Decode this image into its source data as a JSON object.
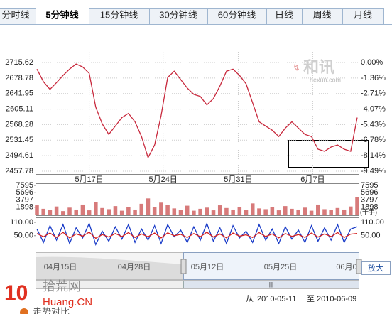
{
  "tabs": [
    "分时线",
    "5分钟线",
    "15分钟线",
    "30分钟线",
    "60分钟线",
    "日线",
    "周线",
    "月线"
  ],
  "active_tab": 1,
  "watermark": {
    "brand": "和讯",
    "site": "hexun.com"
  },
  "chart_data": [
    {
      "type": "line",
      "xlim": [
        0,
        49
      ],
      "xticks": [
        {
          "value": 8,
          "label": "5月17日"
        },
        {
          "value": 19.3,
          "label": "5月24日"
        },
        {
          "value": 30.8,
          "label": "5月31日"
        },
        {
          "value": 42.2,
          "label": "6月7日"
        }
      ],
      "ylim": [
        2457.78,
        2715.62
      ],
      "yticks": [
        2715.62,
        2678.78,
        2641.95,
        2605.11,
        2568.28,
        2531.45,
        2494.61,
        2457.78
      ],
      "y2lim": [
        -9.49,
        0
      ],
      "y2ticks": [
        {
          "value": 0,
          "label": "0.00%"
        },
        {
          "value": -1.36,
          "label": "-1.36%"
        },
        {
          "value": -2.71,
          "label": "-2.71%"
        },
        {
          "value": -4.07,
          "label": "-4.07%"
        },
        {
          "value": -5.43,
          "label": "-5.43%"
        },
        {
          "value": -6.78,
          "label": "-6.78%"
        },
        {
          "value": -8.14,
          "label": "-8.14%"
        },
        {
          "value": -9.49,
          "label": "-9.49%"
        }
      ],
      "grid": true,
      "series": [
        {
          "color": "#c8283c",
          "values": [
            2700,
            2670,
            2652,
            2668,
            2685,
            2700,
            2712,
            2705,
            2690,
            2610,
            2570,
            2545,
            2565,
            2585,
            2595,
            2575,
            2540,
            2490,
            2520,
            2590,
            2680,
            2695,
            2675,
            2655,
            2640,
            2635,
            2615,
            2630,
            2660,
            2695,
            2700,
            2685,
            2665,
            2620,
            2575,
            2565,
            2555,
            2540,
            2560,
            2575,
            2560,
            2545,
            2540,
            2510,
            2505,
            2515,
            2520,
            2510,
            2505,
            2585
          ]
        }
      ]
    },
    {
      "type": "bar",
      "xlim": [
        0,
        49
      ],
      "ylim": [
        0,
        7595
      ],
      "yticks": [
        7595,
        5696,
        3797,
        1898
      ],
      "unit": "(千手)",
      "series": [
        {
          "color": "#d77a7a",
          "values": [
            2400,
            1500,
            1200,
            2100,
            900,
            1800,
            1300,
            2600,
            1100,
            3200,
            1700,
            1400,
            2200,
            1000,
            1900,
            1300,
            2800,
            4200,
            2000,
            3100,
            2500,
            1600,
            1200,
            2300,
            1000,
            1500,
            1800,
            1100,
            2400,
            1700,
            1300,
            2000,
            1200,
            2900,
            1600,
            1400,
            1900,
            1100,
            2200,
            1500,
            1300,
            1800,
            1000,
            2600,
            1400,
            1200,
            1700,
            1300,
            2100,
            4600
          ]
        }
      ]
    },
    {
      "type": "line",
      "xlim": [
        0,
        49
      ],
      "ylim": [
        -5,
        110
      ],
      "yticks": [
        {
          "value": 110,
          "label": "110.00"
        },
        {
          "value": 50,
          "label": "50.00"
        }
      ],
      "series": [
        {
          "color": "#1a3cc8",
          "values": [
            80,
            20,
            95,
            30,
            100,
            15,
            85,
            40,
            105,
            10,
            70,
            25,
            90,
            35,
            100,
            20,
            80,
            30,
            95,
            15,
            100,
            45,
            75,
            20,
            90,
            30,
            105,
            25,
            85,
            15,
            95,
            40,
            70,
            20,
            100,
            30,
            80,
            15,
            90,
            35,
            75,
            20,
            95,
            25,
            85,
            30,
            100,
            20,
            80,
            90
          ]
        },
        {
          "color": "#d42020",
          "values": [
            60,
            45,
            62,
            42,
            65,
            40,
            58,
            48,
            66,
            38,
            55,
            44,
            60,
            46,
            64,
            42,
            58,
            45,
            62,
            40,
            63,
            50,
            56,
            42,
            60,
            45,
            66,
            44,
            58,
            40,
            62,
            48,
            54,
            42,
            64,
            46,
            58,
            40,
            60,
            47,
            55,
            42,
            62,
            44,
            58,
            46,
            64,
            42,
            57,
            60
          ]
        }
      ]
    }
  ],
  "navigator": {
    "dates": [
      "04月15日",
      "04月28日",
      "05月12日",
      "05月25日",
      "06月0"
    ],
    "button": "放大",
    "thumb": "|||"
  },
  "footer": {
    "logo_num": "10",
    "logo_cn": "拾荒网",
    "logo_en": "Huang.CN",
    "from": "从",
    "start": "2010-05-11",
    "to": "至",
    "end": "2010-06-09",
    "compare": "走势对比"
  }
}
